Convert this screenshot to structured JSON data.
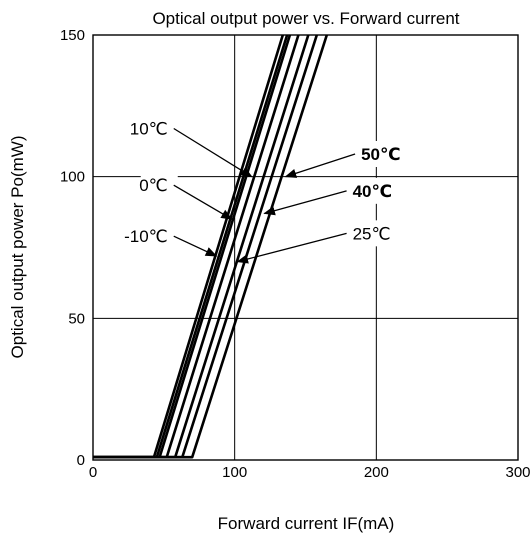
{
  "chart_data": {
    "type": "line",
    "title": "Optical output power vs. Forward current",
    "xlabel": "Forward current  IF(mA)",
    "ylabel": "Optical output power  Po(mW)",
    "xlim": [
      0,
      300
    ],
    "ylim": [
      0,
      150
    ],
    "xticks": [
      "0",
      "100",
      "200",
      "300"
    ],
    "yticks": [
      "0",
      "50",
      "100",
      "150"
    ],
    "grid": true,
    "series": [
      {
        "name": "-10℃",
        "points": [
          [
            0,
            1
          ],
          [
            43,
            1
          ],
          [
            134,
            150
          ]
        ]
      },
      {
        "name": "0℃",
        "points": [
          [
            0,
            1
          ],
          [
            45,
            1
          ],
          [
            137,
            150
          ]
        ]
      },
      {
        "name": "10℃",
        "points": [
          [
            0,
            1
          ],
          [
            47,
            1
          ],
          [
            139,
            150
          ]
        ]
      },
      {
        "name": "25℃",
        "points": [
          [
            0,
            1
          ],
          [
            52,
            1
          ],
          [
            145,
            150
          ]
        ]
      },
      {
        "name": "40℃",
        "points": [
          [
            0,
            1
          ],
          [
            58,
            1
          ],
          [
            152,
            150
          ]
        ]
      },
      {
        "name": "50℃",
        "points": [
          [
            0,
            1
          ],
          [
            63,
            1
          ],
          [
            158,
            150
          ]
        ]
      },
      {
        "name": "",
        "points": [
          [
            0,
            1
          ],
          [
            70,
            1
          ],
          [
            165,
            150
          ]
        ]
      }
    ],
    "annotations": [
      {
        "text": "10℃",
        "side": "left",
        "bold": false,
        "from": [
          57,
          117
        ],
        "to": [
          112,
          100
        ]
      },
      {
        "text": "0℃",
        "side": "left",
        "bold": false,
        "from": [
          57,
          97
        ],
        "to": [
          98,
          85
        ]
      },
      {
        "text": "-10℃",
        "side": "left",
        "bold": false,
        "from": [
          57,
          79
        ],
        "to": [
          87,
          72
        ]
      },
      {
        "text": "50℃",
        "side": "right",
        "bold": true,
        "from": [
          185,
          108
        ],
        "to": [
          136,
          100
        ]
      },
      {
        "text": "40℃",
        "side": "right",
        "bold": true,
        "from": [
          179,
          95
        ],
        "to": [
          121,
          87
        ]
      },
      {
        "text": "25℃",
        "side": "right",
        "bold": false,
        "from": [
          179,
          80
        ],
        "to": [
          102,
          70
        ]
      }
    ]
  }
}
